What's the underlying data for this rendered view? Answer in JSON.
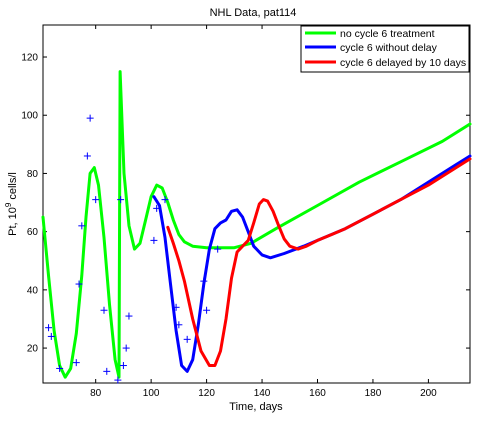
{
  "chart_data": {
    "type": "line",
    "title": "NHL Data, pat114",
    "xlabel": "Time, days",
    "ylabel_main": "Pt, 10",
    "ylabel_sup": "9",
    "ylabel_tail": " cells/l",
    "xlim": [
      61,
      215
    ],
    "ylim": [
      8,
      131
    ],
    "xticks": [
      80,
      100,
      120,
      140,
      160,
      180,
      200
    ],
    "yticks": [
      20,
      40,
      60,
      80,
      100,
      120
    ],
    "grid": false,
    "legend_position": "top-right",
    "series": [
      {
        "name": "no cycle 6 treatment",
        "color": "#00ff00",
        "points": [
          [
            61,
            65
          ],
          [
            63,
            45
          ],
          [
            65,
            26
          ],
          [
            67,
            14
          ],
          [
            69,
            10
          ],
          [
            71,
            13
          ],
          [
            73,
            25
          ],
          [
            75,
            45
          ],
          [
            76.5,
            65
          ],
          [
            78,
            80
          ],
          [
            79.5,
            82
          ],
          [
            81,
            76
          ],
          [
            83,
            58
          ],
          [
            85,
            35
          ],
          [
            87,
            16
          ],
          [
            88.4,
            10
          ],
          [
            88.8,
            115
          ],
          [
            90.2,
            80
          ],
          [
            92,
            62
          ],
          [
            94,
            54
          ],
          [
            96,
            56
          ],
          [
            98,
            64
          ],
          [
            100,
            72
          ],
          [
            102,
            76
          ],
          [
            104,
            75
          ],
          [
            106,
            70
          ],
          [
            108,
            64
          ],
          [
            110,
            59
          ],
          [
            112,
            56.5
          ],
          [
            115,
            55
          ],
          [
            120,
            54.5
          ],
          [
            130,
            54.5
          ],
          [
            136,
            56
          ],
          [
            145,
            61
          ],
          [
            160,
            69
          ],
          [
            175,
            77
          ],
          [
            190,
            84
          ],
          [
            205,
            91
          ],
          [
            215,
            97
          ]
        ]
      },
      {
        "name": "cycle 6 without delay",
        "color": "#0000ff",
        "points": [
          [
            101,
            72
          ],
          [
            103,
            69
          ],
          [
            105,
            58
          ],
          [
            107,
            42
          ],
          [
            109,
            26
          ],
          [
            111,
            14
          ],
          [
            113,
            12
          ],
          [
            115,
            16
          ],
          [
            117,
            28
          ],
          [
            119,
            42
          ],
          [
            121,
            54
          ],
          [
            123,
            61
          ],
          [
            125,
            63
          ],
          [
            127,
            64
          ],
          [
            129,
            67
          ],
          [
            131,
            67.5
          ],
          [
            133,
            65
          ],
          [
            135,
            60
          ],
          [
            137,
            55
          ],
          [
            140,
            52
          ],
          [
            143,
            51
          ],
          [
            148,
            52.5
          ],
          [
            155,
            55
          ],
          [
            160,
            57
          ],
          [
            170,
            61
          ],
          [
            180,
            66
          ],
          [
            190,
            71
          ],
          [
            200,
            77
          ],
          [
            210,
            83
          ],
          [
            215,
            86
          ]
        ]
      },
      {
        "name": "cycle 6 delayed by 10 days",
        "color": "#ff0000",
        "points": [
          [
            106,
            61.5
          ],
          [
            108,
            56
          ],
          [
            110,
            50
          ],
          [
            112,
            43
          ],
          [
            115,
            30
          ],
          [
            118,
            19
          ],
          [
            121,
            14
          ],
          [
            123,
            14
          ],
          [
            125,
            19
          ],
          [
            127,
            30
          ],
          [
            129,
            44
          ],
          [
            131,
            53
          ],
          [
            133,
            55
          ],
          [
            135,
            57
          ],
          [
            137,
            63
          ],
          [
            139,
            69.5
          ],
          [
            140.5,
            71
          ],
          [
            142,
            70.5
          ],
          [
            144,
            67
          ],
          [
            146,
            62
          ],
          [
            148,
            57.5
          ],
          [
            150,
            55
          ],
          [
            153,
            54
          ],
          [
            156,
            55
          ],
          [
            160,
            57
          ],
          [
            165,
            59
          ],
          [
            170,
            61
          ],
          [
            180,
            66
          ],
          [
            190,
            71
          ],
          [
            200,
            76
          ],
          [
            210,
            82
          ],
          [
            215,
            85
          ]
        ]
      }
    ],
    "markers": {
      "name": "",
      "color": "#0000ff",
      "symbol": "+",
      "points": [
        [
          63,
          27
        ],
        [
          64,
          24
        ],
        [
          67,
          13
        ],
        [
          73,
          15
        ],
        [
          74,
          42
        ],
        [
          75,
          62
        ],
        [
          77,
          86
        ],
        [
          78,
          99
        ],
        [
          80,
          71
        ],
        [
          83,
          33
        ],
        [
          84,
          12
        ],
        [
          88,
          9
        ],
        [
          89,
          71
        ],
        [
          90,
          14
        ],
        [
          91,
          20
        ],
        [
          92,
          31
        ],
        [
          101,
          57
        ],
        [
          102,
          68
        ],
        [
          105,
          71
        ],
        [
          109,
          34
        ],
        [
          110,
          28
        ],
        [
          113,
          23
        ],
        [
          119,
          43
        ],
        [
          120,
          33
        ],
        [
          124,
          54
        ]
      ]
    }
  }
}
